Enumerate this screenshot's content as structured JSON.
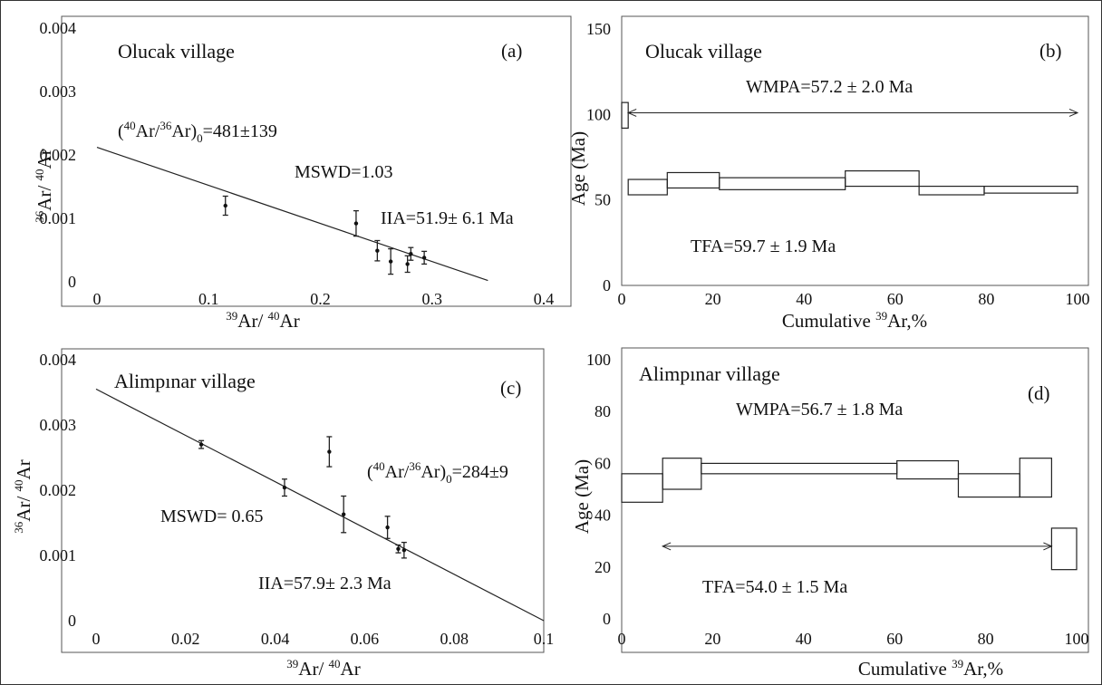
{
  "chart_data": [
    {
      "id": "a",
      "type": "scatter",
      "panel_label": "(a)",
      "title": "Olucak village",
      "xlim": [
        0,
        0.4
      ],
      "ylim": [
        0,
        0.004
      ],
      "xticks": [
        "0",
        "0.1",
        "0.2",
        "0.3",
        "0.4"
      ],
      "yticks": [
        "0",
        "0.001",
        "0.002",
        "0.003",
        "0.004"
      ],
      "points": [
        {
          "x": 0.115,
          "y": 0.0012,
          "err": 0.00015
        },
        {
          "x": 0.232,
          "y": 0.00092,
          "err": 0.0002
        },
        {
          "x": 0.251,
          "y": 0.00049,
          "err": 0.00016
        },
        {
          "x": 0.263,
          "y": 0.00032,
          "err": 0.0002
        },
        {
          "x": 0.278,
          "y": 0.00028,
          "err": 0.00013
        },
        {
          "x": 0.281,
          "y": 0.00044,
          "err": 0.0001
        },
        {
          "x": 0.293,
          "y": 0.00038,
          "err": 0.0001
        }
      ],
      "fit_line": [
        [
          0,
          0.00212
        ],
        [
          0.35,
          2e-05
        ]
      ],
      "annotations": [
        "MSWD=1.03",
        "IIA=51.9± 6.1 Ma"
      ]
    },
    {
      "id": "b",
      "type": "step",
      "panel_label": "(b)",
      "title": "Olucak village",
      "xlim": [
        0,
        105
      ],
      "ylim": [
        0,
        150
      ],
      "xticks": [
        "0",
        "20",
        "40",
        "60",
        "80",
        "100"
      ],
      "yticks": [
        "0",
        "50",
        "100",
        "150"
      ],
      "ylabel": "Age (Ma)",
      "steps": [
        {
          "x0": 0,
          "x1": 1.5,
          "lo": 92,
          "hi": 107
        },
        {
          "x0": 1.5,
          "x1": 10.5,
          "lo": 53,
          "hi": 62
        },
        {
          "x0": 10.5,
          "x1": 22.5,
          "lo": 57,
          "hi": 66
        },
        {
          "x0": 22.5,
          "x1": 51.5,
          "lo": 56,
          "hi": 63
        },
        {
          "x0": 51.5,
          "x1": 68.5,
          "lo": 58,
          "hi": 67
        },
        {
          "x0": 68.5,
          "x1": 83.5,
          "lo": 53,
          "hi": 58
        },
        {
          "x0": 83.5,
          "x1": 105,
          "lo": 54,
          "hi": 58
        }
      ],
      "plateau_arrow": {
        "x0": 1.5,
        "x1": 105,
        "y": 101
      },
      "annotations": [
        "WMPA=57.2 ± 2.0 Ma",
        "TFA=59.7 ± 1.9 Ma"
      ]
    },
    {
      "id": "c",
      "type": "scatter",
      "panel_label": "(c)",
      "title": "Alimpınar village",
      "xlim": [
        0,
        0.1
      ],
      "ylim": [
        0,
        0.004
      ],
      "xticks": [
        "0",
        "0.02",
        "0.04",
        "0.06",
        "0.08",
        "0.1"
      ],
      "yticks": [
        "0",
        "0.001",
        "0.002",
        "0.003",
        "0.004"
      ],
      "points": [
        {
          "x": 0.0235,
          "y": 0.0027,
          "err": 6e-05
        },
        {
          "x": 0.0421,
          "y": 0.00204,
          "err": 0.00013
        },
        {
          "x": 0.0521,
          "y": 0.00259,
          "err": 0.00023
        },
        {
          "x": 0.0553,
          "y": 0.00163,
          "err": 0.00028
        },
        {
          "x": 0.0651,
          "y": 0.00143,
          "err": 0.00017
        },
        {
          "x": 0.0675,
          "y": 0.0011,
          "err": 6e-05
        },
        {
          "x": 0.0688,
          "y": 0.00108,
          "err": 0.00012
        }
      ],
      "fit_line": [
        [
          0,
          0.00355
        ],
        [
          0.1,
          0
        ]
      ],
      "annotations": [
        "MSWD= 0.65",
        "IIA=57.9± 2.3 Ma"
      ]
    },
    {
      "id": "d",
      "type": "step",
      "panel_label": "(d)",
      "title": "Alimpınar village",
      "xlim": [
        0,
        100
      ],
      "ylim": [
        0,
        100
      ],
      "xticks": [
        "0",
        "20",
        "40",
        "60",
        "80",
        "100"
      ],
      "yticks": [
        "0",
        "20",
        "40",
        "60",
        "80",
        "100"
      ],
      "ylabel": "Age (Ma)",
      "steps": [
        {
          "x0": 0,
          "x1": 9,
          "lo": 45,
          "hi": 56
        },
        {
          "x0": 9,
          "x1": 17.5,
          "lo": 50,
          "hi": 62
        },
        {
          "x0": 17.5,
          "x1": 60.5,
          "lo": 56,
          "hi": 60
        },
        {
          "x0": 60.5,
          "x1": 74,
          "lo": 54,
          "hi": 61
        },
        {
          "x0": 74,
          "x1": 87.5,
          "lo": 47,
          "hi": 56
        },
        {
          "x0": 87.5,
          "x1": 94.5,
          "lo": 47,
          "hi": 62
        },
        {
          "x0": 94.5,
          "x1": 100,
          "lo": 19,
          "hi": 35
        }
      ],
      "plateau_arrow": {
        "x0": 9,
        "x1": 94.5,
        "y": 28
      },
      "annotations": [
        "WMPA=56.7 ± 1.8 Ma",
        "TFA=54.0 ± 1.5 Ma"
      ]
    }
  ]
}
